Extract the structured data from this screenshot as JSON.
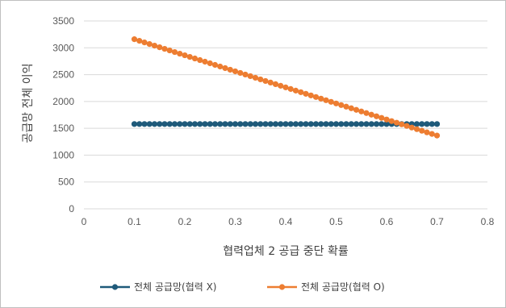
{
  "chart_data": {
    "type": "line",
    "xlabel": "협력업체 2 공급 중단 확률",
    "ylabel": "공급망 전체 이익",
    "xlim": [
      0,
      0.8
    ],
    "ylim": [
      0,
      3500
    ],
    "xticks": [
      0,
      0.1,
      0.2,
      0.3,
      0.4,
      0.5,
      0.6,
      0.7,
      0.8
    ],
    "yticks": [
      0,
      500,
      1000,
      1500,
      2000,
      2500,
      3000,
      3500
    ],
    "x_range": [
      0.1,
      0.7
    ],
    "x_step": 0.01,
    "grid": "horizontal",
    "legend_position": "bottom",
    "series": [
      {
        "name": "전체 공급망(협력 X)",
        "color": "#1f5a7a",
        "start_value": 1580,
        "end_value": 1580
      },
      {
        "name": "전체 공급망(협력 O)",
        "color": "#ed7d31",
        "start_value": 3160,
        "end_value": 1365
      }
    ]
  }
}
